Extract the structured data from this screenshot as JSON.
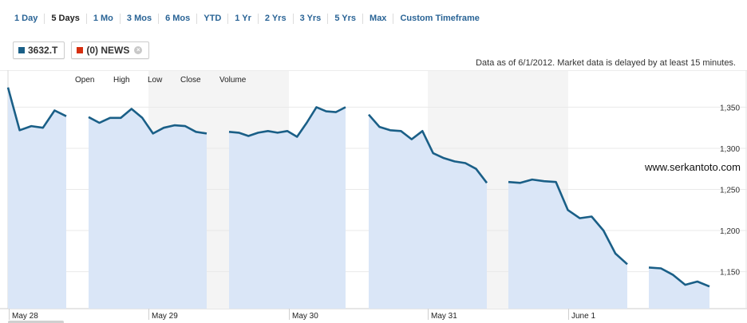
{
  "timeframes": [
    {
      "label": "1 Day",
      "active": false
    },
    {
      "label": "5 Days",
      "active": true
    },
    {
      "label": "1 Mo",
      "active": false
    },
    {
      "label": "3 Mos",
      "active": false
    },
    {
      "label": "6 Mos",
      "active": false
    },
    {
      "label": "YTD",
      "active": false
    },
    {
      "label": "1 Yr",
      "active": false
    },
    {
      "label": "2 Yrs",
      "active": false
    },
    {
      "label": "3 Yrs",
      "active": false
    },
    {
      "label": "5 Yrs",
      "active": false
    },
    {
      "label": "Max",
      "active": false
    },
    {
      "label": "Custom Timeframe",
      "active": false
    }
  ],
  "tags": [
    {
      "label": "3632.T",
      "color": "#1a5f87",
      "removable": false
    },
    {
      "label": "(0) NEWS",
      "color": "#d62f10",
      "removable": true
    }
  ],
  "as_of": "Data as of 6/1/2012. Market data is delayed by at least 15 minutes.",
  "watermark": "www.serkantoto.com",
  "colors": {
    "line": "#1a5f87",
    "fill": "#dae6f7",
    "band": "#f4f4f4"
  },
  "chart_data": {
    "type": "area",
    "legend_items": [
      "Open",
      "High",
      "Low",
      "Close",
      "Volume"
    ],
    "y_ticks": [
      1150,
      1200,
      1250,
      1300,
      1350
    ],
    "ylim": [
      1105,
      1395
    ],
    "x_labels": [
      "May 28",
      "May 29",
      "May 30",
      "May 31",
      "June 1"
    ],
    "grid": true,
    "segments": [
      {
        "day": "May 28",
        "values": [
          1374,
          1322,
          1327,
          1325,
          1346,
          1339
        ]
      },
      {
        "day": "May 29",
        "values": [
          1338,
          1331,
          1337,
          1337,
          1348,
          1337,
          1318,
          1325,
          1328,
          1327,
          1320,
          1318
        ]
      },
      {
        "day": "May 30",
        "values": [
          1320,
          1319,
          1315,
          1319,
          1321,
          1319,
          1321,
          1314,
          1331,
          1350,
          1345,
          1344,
          1350
        ]
      },
      {
        "day": "May 31",
        "values": [
          1341,
          1326,
          1322,
          1321,
          1311,
          1321,
          1294,
          1288,
          1284,
          1282,
          1275,
          1258
        ]
      },
      {
        "day": "June 1",
        "values": [
          1259,
          1258,
          1262,
          1260,
          1259,
          1225,
          1215,
          1217,
          1200,
          1172,
          1159
        ]
      },
      {
        "day": "June 1",
        "values": [
          1155,
          1154,
          1146,
          1134,
          1138,
          1132
        ]
      }
    ]
  }
}
